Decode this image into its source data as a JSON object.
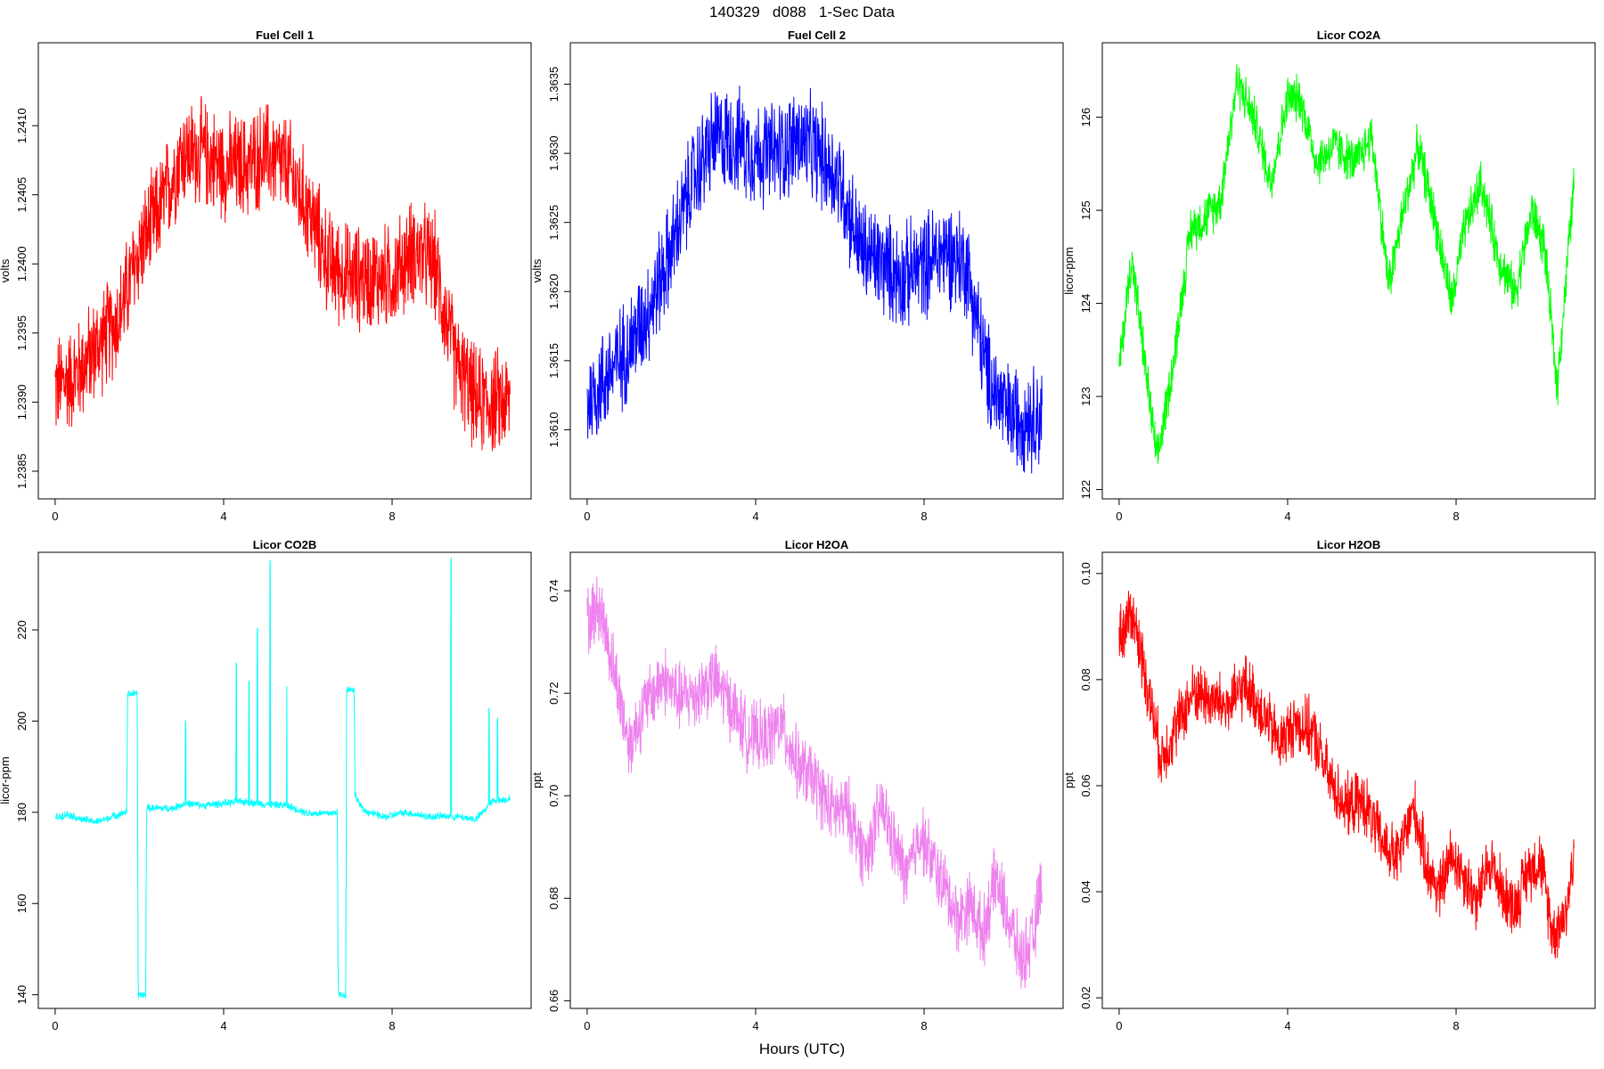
{
  "figure": {
    "title": "140329   d088   1-Sec Data",
    "xlabel": "Hours (UTC)"
  },
  "chart_data": [
    {
      "type": "line",
      "title": "Fuel Cell 1",
      "ylabel": "volts",
      "color": "#ff0000",
      "xlim": [
        -0.4,
        11.3
      ],
      "ylim": [
        1.2383,
        1.2416
      ],
      "xticks": [
        0,
        4,
        8
      ],
      "yticks": [
        1.2385,
        1.239,
        1.2395,
        1.24,
        1.2405,
        1.241
      ],
      "ytick_labels": [
        "1.2385",
        "1.2390",
        "1.2395",
        "1.2400",
        "1.2405",
        "1.2410"
      ],
      "x": [
        0,
        0.5,
        1.0,
        1.5,
        2.0,
        2.5,
        3.0,
        3.5,
        4.0,
        4.5,
        5.0,
        5.5,
        6.0,
        6.5,
        7.0,
        7.5,
        8.0,
        8.5,
        9.0,
        9.5,
        10.0,
        10.5,
        10.8
      ],
      "y": [
        1.2391,
        1.2392,
        1.2394,
        1.2396,
        1.2401,
        1.2404,
        1.2408,
        1.2408,
        1.2407,
        1.2407,
        1.2408,
        1.2407,
        1.2404,
        1.24,
        1.2399,
        1.2399,
        1.2399,
        1.2401,
        1.24,
        1.2393,
        1.239,
        1.239,
        1.239
      ],
      "noise": 0.00045
    },
    {
      "type": "line",
      "title": "Fuel Cell 2",
      "ylabel": "volts",
      "color": "#0000ff",
      "xlim": [
        -0.4,
        11.3
      ],
      "ylim": [
        1.3605,
        1.3638
      ],
      "xticks": [
        0,
        4,
        8
      ],
      "yticks": [
        1.361,
        1.3615,
        1.362,
        1.3625,
        1.363,
        1.3635
      ],
      "ytick_labels": [
        "1.3610",
        "1.3615",
        "1.3620",
        "1.3625",
        "1.3630",
        "1.3635"
      ],
      "x": [
        0,
        0.5,
        1.0,
        1.5,
        2.0,
        2.5,
        3.0,
        3.5,
        4.0,
        4.5,
        5.0,
        5.5,
        6.0,
        6.5,
        7.0,
        7.5,
        8.0,
        8.5,
        9.0,
        9.5,
        10.0,
        10.5,
        10.8
      ],
      "y": [
        1.3612,
        1.3614,
        1.3616,
        1.3619,
        1.3623,
        1.3628,
        1.3631,
        1.3631,
        1.363,
        1.363,
        1.3631,
        1.363,
        1.3628,
        1.3623,
        1.3622,
        1.3621,
        1.3622,
        1.3623,
        1.3622,
        1.3614,
        1.3611,
        1.3611,
        1.3611
      ],
      "noise": 0.00045
    },
    {
      "type": "line",
      "title": "Licor CO2A",
      "ylabel": "licor-ppm",
      "color": "#00ff00",
      "xlim": [
        -0.4,
        11.3
      ],
      "ylim": [
        121.9,
        126.8
      ],
      "xticks": [
        0,
        4,
        8
      ],
      "yticks": [
        122,
        123,
        124,
        125,
        126
      ],
      "ytick_labels": [
        "122",
        "123",
        "124",
        "125",
        "126"
      ],
      "x": [
        0,
        0.3,
        0.6,
        0.9,
        1.3,
        1.7,
        2.0,
        2.4,
        2.8,
        3.2,
        3.6,
        4.0,
        4.3,
        4.7,
        5.1,
        5.6,
        6.0,
        6.4,
        6.8,
        7.1,
        7.5,
        7.9,
        8.2,
        8.6,
        9.0,
        9.4,
        9.8,
        10.1,
        10.4,
        10.8
      ],
      "y": [
        123.3,
        124.5,
        123.4,
        122.3,
        123.4,
        124.8,
        124.9,
        125.1,
        126.4,
        126.0,
        125.3,
        126.2,
        126.2,
        125.5,
        125.7,
        125.5,
        125.8,
        124.2,
        125.1,
        125.7,
        124.9,
        124.0,
        124.8,
        125.3,
        124.5,
        124.1,
        125.0,
        124.6,
        123.1,
        125.3
      ],
      "noise": 0.3
    },
    {
      "type": "line",
      "title": "Licor CO2B",
      "ylabel": "licor-ppm",
      "color": "#00ffff",
      "xlim": [
        -0.4,
        11.3
      ],
      "ylim": [
        137,
        237
      ],
      "xticks": [
        0,
        4,
        8
      ],
      "yticks": [
        140,
        160,
        180,
        200,
        220
      ],
      "ytick_labels": [
        "140",
        "160",
        "180",
        "200",
        "220"
      ],
      "x": [
        0,
        0.3,
        0.6,
        1.0,
        1.4,
        1.7,
        1.72,
        1.95,
        1.97,
        2.15,
        2.17,
        2.3,
        2.8,
        3.1,
        3.5,
        4.0,
        4.5,
        5.0,
        5.5,
        6.0,
        6.6,
        6.7,
        6.72,
        6.9,
        6.92,
        7.1,
        7.12,
        7.3,
        7.8,
        8.3,
        8.9,
        9.3,
        9.6,
        10.0,
        10.4,
        10.8
      ],
      "y": [
        178.8,
        179.6,
        178.5,
        177.9,
        179.2,
        180.1,
        206,
        206,
        140,
        140,
        181,
        180.9,
        180.9,
        182,
        181.5,
        182,
        182.3,
        181.8,
        181.5,
        179.8,
        179.8,
        180.2,
        140,
        140,
        207,
        207,
        184,
        180.5,
        178.9,
        180,
        179,
        179.2,
        179,
        178.5,
        182.5,
        183
      ],
      "spikes": [
        [
          3.1,
          200
        ],
        [
          4.3,
          213
        ],
        [
          4.6,
          209
        ],
        [
          4.8,
          220
        ],
        [
          5.1,
          235
        ],
        [
          5.5,
          208
        ],
        [
          9.4,
          235
        ],
        [
          10.3,
          203
        ],
        [
          10.5,
          201
        ]
      ],
      "noise": 1.0
    },
    {
      "type": "line",
      "title": "Licor H2OA",
      "ylabel": "ppt",
      "color": "#ee82ee",
      "xlim": [
        -0.4,
        11.3
      ],
      "ylim": [
        0.6585,
        0.7475
      ],
      "xticks": [
        0,
        4,
        8
      ],
      "yticks": [
        0.66,
        0.68,
        0.7,
        0.72,
        0.74
      ],
      "ytick_labels": [
        "0.66",
        "0.68",
        "0.70",
        "0.72",
        "0.74"
      ],
      "x": [
        0,
        0.3,
        0.6,
        1.0,
        1.4,
        1.8,
        2.2,
        2.6,
        3.0,
        3.4,
        3.8,
        4.2,
        4.6,
        5.0,
        5.4,
        5.8,
        6.2,
        6.6,
        7.0,
        7.3,
        7.6,
        7.9,
        8.2,
        8.5,
        8.8,
        9.1,
        9.4,
        9.7,
        10.0,
        10.3,
        10.6,
        10.8
      ],
      "y": [
        0.734,
        0.737,
        0.726,
        0.71,
        0.718,
        0.723,
        0.719,
        0.72,
        0.723,
        0.718,
        0.712,
        0.711,
        0.714,
        0.706,
        0.703,
        0.697,
        0.697,
        0.688,
        0.698,
        0.69,
        0.684,
        0.693,
        0.687,
        0.682,
        0.676,
        0.679,
        0.673,
        0.684,
        0.676,
        0.668,
        0.672,
        0.685
      ],
      "noise": 0.008
    },
    {
      "type": "line",
      "title": "Licor H2OB",
      "ylabel": "ppt",
      "color": "#ff0000",
      "xlim": [
        -0.4,
        11.3
      ],
      "ylim": [
        0.018,
        0.104
      ],
      "xticks": [
        0,
        4,
        8
      ],
      "yticks": [
        0.02,
        0.04,
        0.06,
        0.08,
        0.1
      ],
      "ytick_labels": [
        "0.02",
        "0.04",
        "0.06",
        "0.08",
        "0.10"
      ],
      "x": [
        0,
        0.3,
        0.6,
        1.0,
        1.4,
        1.8,
        2.2,
        2.6,
        3.0,
        3.4,
        3.8,
        4.2,
        4.6,
        5.0,
        5.4,
        5.8,
        6.2,
        6.6,
        7.0,
        7.3,
        7.6,
        7.9,
        8.2,
        8.5,
        8.8,
        9.1,
        9.4,
        9.7,
        10.0,
        10.3,
        10.6,
        10.8
      ],
      "y": [
        0.088,
        0.093,
        0.082,
        0.065,
        0.072,
        0.078,
        0.076,
        0.075,
        0.079,
        0.074,
        0.068,
        0.072,
        0.07,
        0.061,
        0.056,
        0.057,
        0.05,
        0.046,
        0.056,
        0.045,
        0.04,
        0.047,
        0.043,
        0.038,
        0.046,
        0.04,
        0.037,
        0.044,
        0.046,
        0.032,
        0.036,
        0.046
      ],
      "noise": 0.007
    }
  ]
}
